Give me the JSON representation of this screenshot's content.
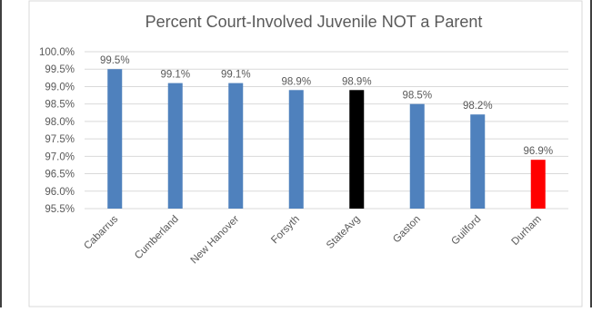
{
  "chart_data": {
    "type": "bar",
    "title": "Percent Court-Involved Juvenile NOT a Parent",
    "xlabel": "",
    "ylabel": "",
    "categories": [
      "Cabarrus",
      "Cumberland",
      "New Hanover",
      "Forsyth",
      "StateAvg",
      "Gaston",
      "Guilford",
      "Durham"
    ],
    "values": [
      99.5,
      99.1,
      99.1,
      98.9,
      98.9,
      98.5,
      98.2,
      96.9
    ],
    "data_labels": [
      "99.5%",
      "99.1%",
      "99.1%",
      "98.9%",
      "98.9%",
      "98.5%",
      "98.2%",
      "96.9%"
    ],
    "bar_colors": [
      "#4f81bd",
      "#4f81bd",
      "#4f81bd",
      "#4f81bd",
      "#000000",
      "#4f81bd",
      "#4f81bd",
      "#ff0000"
    ],
    "ylim": [
      95.5,
      100.0
    ],
    "yticks": [
      95.5,
      96.0,
      96.5,
      97.0,
      97.5,
      98.0,
      98.5,
      99.0,
      99.5,
      100.0
    ],
    "ytick_labels": [
      "95.5%",
      "96.0%",
      "96.5%",
      "97.0%",
      "97.5%",
      "98.0%",
      "98.5%",
      "99.0%",
      "99.5%",
      "100.0%"
    ],
    "grid": true,
    "legend": "none"
  },
  "colors": {
    "default_bar": "#4f81bd",
    "state_avg_bar": "#000000",
    "highlight_bar": "#ff0000",
    "gridline": "#d9d9d9",
    "text": "#595959"
  }
}
